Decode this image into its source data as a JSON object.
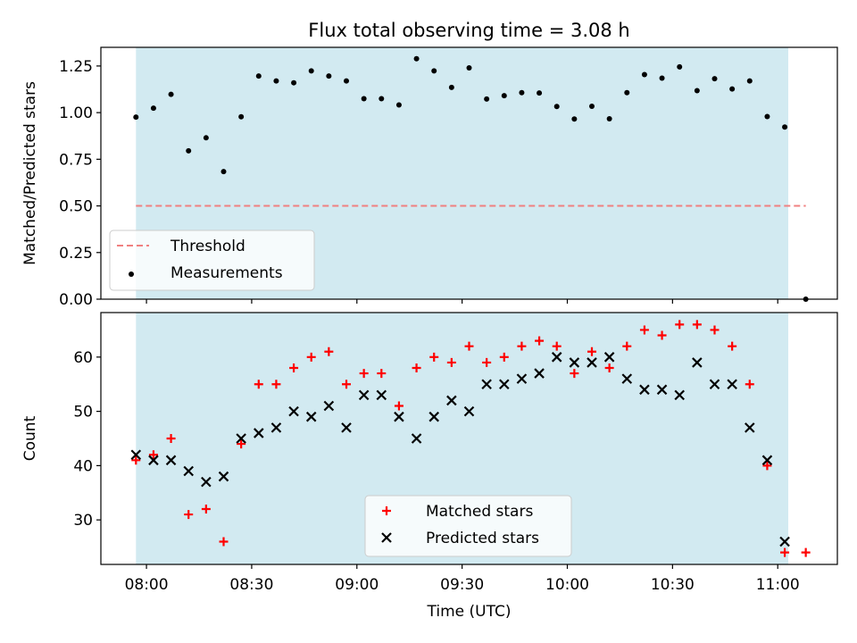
{
  "chart_data": [
    {
      "type": "scatter",
      "title": "Flux total observing time = 3.08 h",
      "xlabel": "",
      "ylabel": "Matched/Predicted stars",
      "ylim": [
        0,
        1.35
      ],
      "yticks": [
        "0.00",
        "0.25",
        "0.50",
        "0.75",
        "1.00",
        "1.25"
      ],
      "xlim": [
        "07:47",
        "11:17"
      ],
      "shaded_range": [
        "07:57",
        "11:03"
      ],
      "shade_color": "#add8e6",
      "legend_position": "lower-left",
      "threshold": {
        "name": "Threshold",
        "value": 0.5,
        "x_range": [
          "07:57",
          "11:08"
        ],
        "color": "#f08080"
      },
      "series": [
        {
          "name": "Measurements",
          "color": "#000000",
          "marker": "dot",
          "x": [
            "07:57",
            "08:02",
            "08:07",
            "08:12",
            "08:17",
            "08:22",
            "08:27",
            "08:32",
            "08:37",
            "08:42",
            "08:47",
            "08:52",
            "08:57",
            "09:02",
            "09:07",
            "09:12",
            "09:17",
            "09:22",
            "09:27",
            "09:32",
            "09:37",
            "09:42",
            "09:47",
            "09:52",
            "09:57",
            "10:02",
            "10:07",
            "10:12",
            "10:17",
            "10:22",
            "10:27",
            "10:32",
            "10:37",
            "10:42",
            "10:47",
            "10:52",
            "10:57",
            "11:02",
            "11:08"
          ],
          "y": [
            0.976,
            1.024,
            1.098,
            0.795,
            0.865,
            0.684,
            0.978,
            1.196,
            1.17,
            1.16,
            1.224,
            1.196,
            1.17,
            1.075,
            1.075,
            1.041,
            1.289,
            1.224,
            1.135,
            1.24,
            1.073,
            1.091,
            1.107,
            1.105,
            1.033,
            0.966,
            1.034,
            0.967,
            1.107,
            1.204,
            1.185,
            1.245,
            1.118,
            1.182,
            1.127,
            1.17,
            0.979,
            0.923,
            0.0
          ]
        }
      ]
    },
    {
      "type": "scatter",
      "title": "",
      "xlabel": "Time (UTC)",
      "ylabel": "Count",
      "ylim": [
        21.8,
        68.2
      ],
      "yticks": [
        "30",
        "40",
        "50",
        "60"
      ],
      "xlim": [
        "07:47",
        "11:17"
      ],
      "xticks": [
        "08:00",
        "08:30",
        "09:00",
        "09:30",
        "10:00",
        "10:30",
        "11:00"
      ],
      "shaded_range": [
        "07:57",
        "11:03"
      ],
      "shade_color": "#add8e6",
      "legend_position": "lower-center",
      "series": [
        {
          "name": "Matched stars",
          "color": "#ff0000",
          "marker": "plus",
          "x": [
            "07:57",
            "08:02",
            "08:07",
            "08:12",
            "08:17",
            "08:22",
            "08:27",
            "08:32",
            "08:37",
            "08:42",
            "08:47",
            "08:52",
            "08:57",
            "09:02",
            "09:07",
            "09:12",
            "09:17",
            "09:22",
            "09:27",
            "09:32",
            "09:37",
            "09:42",
            "09:47",
            "09:52",
            "09:57",
            "10:02",
            "10:07",
            "10:12",
            "10:17",
            "10:22",
            "10:27",
            "10:32",
            "10:37",
            "10:42",
            "10:47",
            "10:52",
            "10:57",
            "11:02",
            "11:08"
          ],
          "y": [
            41,
            42,
            45,
            31,
            32,
            26,
            44,
            55,
            55,
            58,
            60,
            61,
            55,
            57,
            57,
            51,
            58,
            60,
            59,
            62,
            59,
            60,
            62,
            63,
            62,
            57,
            61,
            58,
            62,
            65,
            64,
            66,
            66,
            65,
            62,
            55,
            40,
            24,
            24
          ]
        },
        {
          "name": "Predicted stars",
          "color": "#000000",
          "marker": "x",
          "x": [
            "07:57",
            "08:02",
            "08:07",
            "08:12",
            "08:17",
            "08:22",
            "08:27",
            "08:32",
            "08:37",
            "08:42",
            "08:47",
            "08:52",
            "08:57",
            "09:02",
            "09:07",
            "09:12",
            "09:17",
            "09:22",
            "09:27",
            "09:32",
            "09:37",
            "09:42",
            "09:47",
            "09:52",
            "09:57",
            "10:02",
            "10:07",
            "10:12",
            "10:17",
            "10:22",
            "10:27",
            "10:32",
            "10:37",
            "10:42",
            "10:47",
            "10:52",
            "10:57",
            "11:02"
          ],
          "y": [
            42,
            41,
            41,
            39,
            37,
            38,
            45,
            46,
            47,
            50,
            49,
            51,
            47,
            53,
            53,
            49,
            45,
            49,
            52,
            50,
            55,
            55,
            56,
            57,
            60,
            59,
            59,
            60,
            56,
            54,
            54,
            53,
            59,
            55,
            55,
            47,
            41,
            26
          ]
        }
      ]
    }
  ]
}
